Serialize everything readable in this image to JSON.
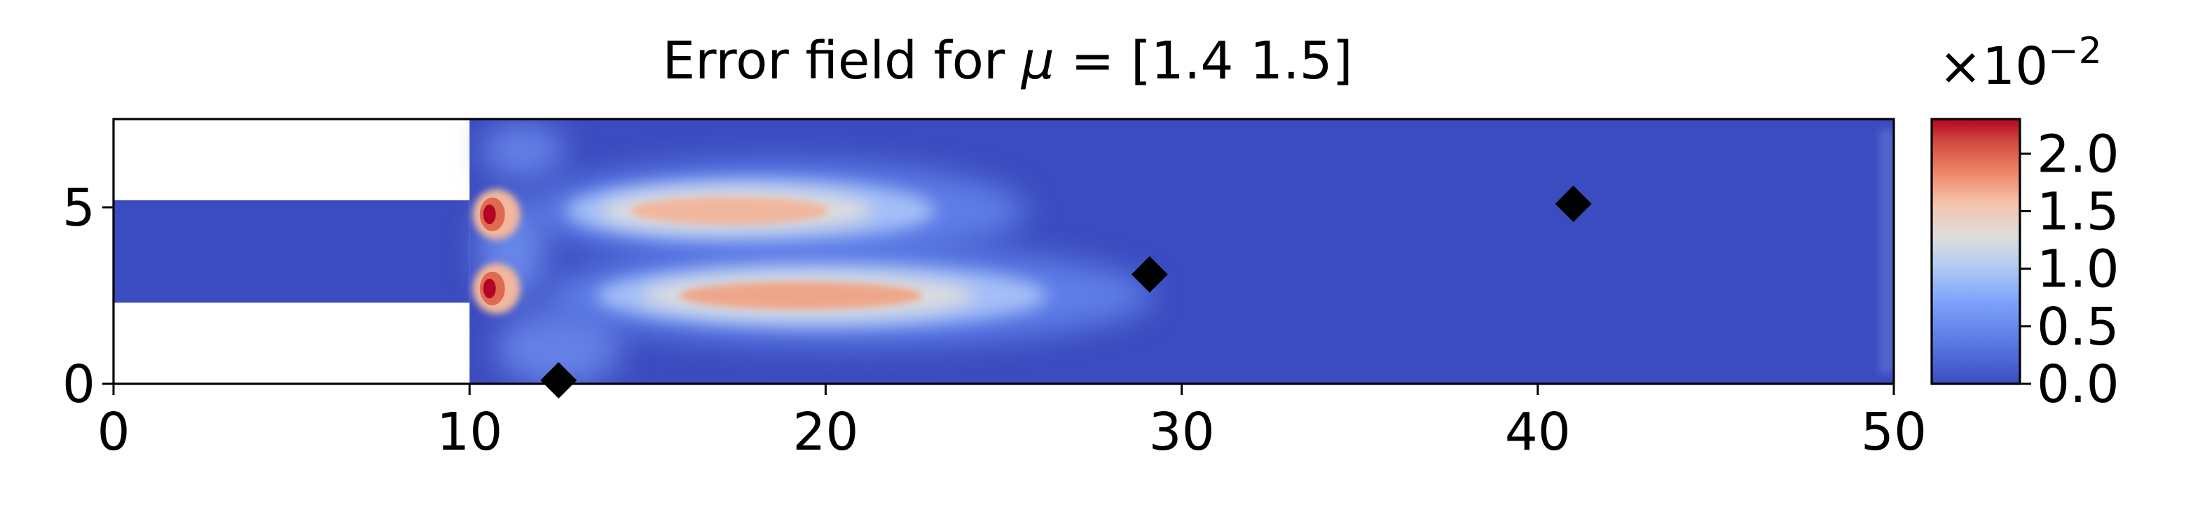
{
  "chart_data": {
    "type": "heatmap",
    "title": "Error field for μ = [1.4 1.5]",
    "xlabel": "",
    "ylabel": "",
    "xlim": [
      0,
      50
    ],
    "ylim": [
      0,
      7.5
    ],
    "x_ticks": [
      0,
      10,
      20,
      30,
      40,
      50
    ],
    "y_ticks": [
      0,
      5
    ],
    "domain": {
      "inlet_channel": {
        "x": [
          0,
          10
        ],
        "y": [
          2.3,
          5.2
        ]
      },
      "main_channel": {
        "x": [
          10,
          50
        ],
        "y": [
          0,
          7.5
        ]
      }
    },
    "colormap": "coolwarm",
    "colorbar": {
      "range": [
        0.0,
        2.3
      ],
      "ticks": [
        0.0,
        0.5,
        1.0,
        1.5,
        2.0
      ],
      "tick_labels": [
        "0.0",
        "0.5",
        "1.0",
        "1.5",
        "2.0"
      ],
      "multiplier": "×10",
      "exponent": "−2"
    },
    "error_features": [
      {
        "kind": "jet",
        "x": [
          13,
          22
        ],
        "y_center": 4.9,
        "peak": 1.6
      },
      {
        "kind": "jet",
        "x": [
          14,
          25
        ],
        "y_center": 2.5,
        "peak": 1.8
      },
      {
        "kind": "corner",
        "x": 10.6,
        "y": 4.8,
        "peak": 2.3
      },
      {
        "kind": "corner",
        "x": 10.6,
        "y": 2.7,
        "peak": 2.3
      }
    ],
    "markers": [
      {
        "x": 12.5,
        "y": 0.1
      },
      {
        "x": 29.1,
        "y": 3.1
      },
      {
        "x": 41.0,
        "y": 5.1
      }
    ],
    "marker_style": "black-diamond",
    "colors": {
      "low": "#3b4cc0",
      "mid": "#dddddd",
      "high": "#b40426",
      "marker": "#000000"
    }
  }
}
